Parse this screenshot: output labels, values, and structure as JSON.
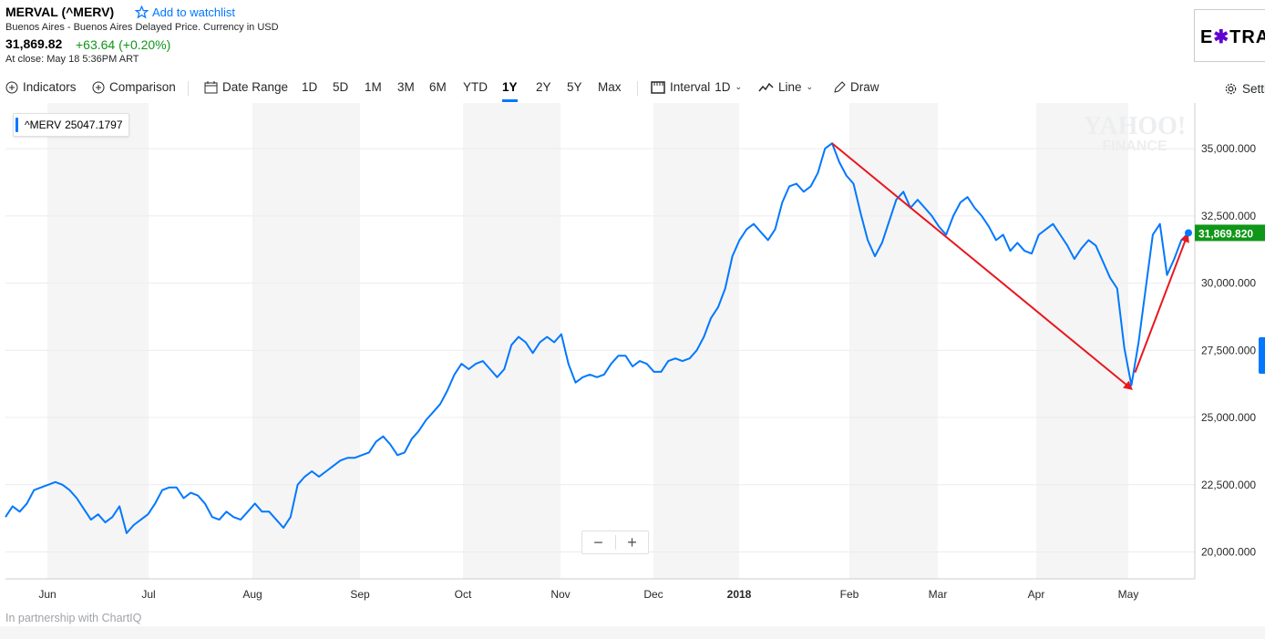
{
  "header": {
    "title": "MERVAL (^MERV)",
    "watchlist_label": "Add to watchlist",
    "subtitle": "Buenos Aires - Buenos Aires Delayed Price. Currency in USD",
    "price": "31,869.82",
    "change": "+63.64 (+0.20%)",
    "close_time": "At close: May 18 5:36PM ART"
  },
  "ad": {
    "text_pre": "E",
    "text_mid": "✱",
    "text_post": "TRA"
  },
  "toolbar": {
    "indicators": "Indicators",
    "comparison": "Comparison",
    "date_range": "Date Range",
    "ranges": [
      "1D",
      "5D",
      "1M",
      "3M",
      "6M",
      "YTD",
      "1Y",
      "2Y",
      "5Y",
      "Max"
    ],
    "active_range": "1Y",
    "interval": "Interval",
    "interval_value": "1D",
    "line": "Line",
    "draw": "Draw",
    "settings": "Settings"
  },
  "legend": {
    "symbol": "^MERV",
    "value": "25047.1797"
  },
  "footer": {
    "partner": "In partnership with ChartIQ"
  },
  "watermark": {
    "line1": "YAHOO!",
    "line2": "FINANCE"
  },
  "colors": {
    "line": "#0078ff",
    "up": "#109618",
    "annotation": "#e8171f",
    "band": "#f5f5f5"
  },
  "chart_data": {
    "type": "line",
    "title": "MERVAL (^MERV)",
    "ylim": [
      19000,
      36700
    ],
    "yticks": [
      20000,
      22500,
      25000,
      27500,
      30000,
      32500,
      35000
    ],
    "ytick_labels": [
      "20,000.000",
      "22,500.000",
      "25,000.000",
      "27,500.000",
      "30,000.000",
      "32,500.000",
      "35,000.000"
    ],
    "xticks": [
      "Jun",
      "Jul",
      "Aug",
      "Sep",
      "Oct",
      "Nov",
      "Dec",
      "2018",
      "Feb",
      "Mar",
      "Apr",
      "May"
    ],
    "current_label": "31,869.820",
    "series": [
      {
        "name": "^MERV",
        "values": [
          21300,
          21700,
          21500,
          21800,
          22300,
          22400,
          22500,
          22600,
          22500,
          22300,
          22000,
          21600,
          21200,
          21400,
          21100,
          21300,
          21700,
          20700,
          21000,
          21200,
          21400,
          21800,
          22300,
          22400,
          22400,
          22000,
          22200,
          22100,
          21800,
          21300,
          21200,
          21500,
          21300,
          21200,
          21500,
          21800,
          21500,
          21500,
          21200,
          20900,
          21300,
          22500,
          22800,
          23000,
          22800,
          23000,
          23200,
          23400,
          23500,
          23500,
          23600,
          23700,
          24100,
          24300,
          24000,
          23600,
          23700,
          24200,
          24500,
          24900,
          25200,
          25500,
          26000,
          26600,
          27000,
          26800,
          27000,
          27100,
          26800,
          26500,
          26800,
          27700,
          28000,
          27800,
          27400,
          27800,
          28000,
          27800,
          28100,
          27000,
          26300,
          26500,
          26600,
          26500,
          26600,
          27000,
          27300,
          27300,
          26900,
          27100,
          27000,
          26700,
          26700,
          27100,
          27200,
          27100,
          27200,
          27500,
          28000,
          28700,
          29100,
          29800,
          31000,
          31600,
          32000,
          32200,
          31900,
          31600,
          32000,
          33000,
          33600,
          33700,
          33400,
          33600,
          34100,
          35000,
          35200,
          34500,
          34000,
          33700,
          32600,
          31600,
          31000,
          31500,
          32300,
          33100,
          33400,
          32800,
          33100,
          32800,
          32500,
          32100,
          31800,
          32500,
          33000,
          33200,
          32800,
          32500,
          32100,
          31600,
          31800,
          31200,
          31500,
          31200,
          31100,
          31800,
          32000,
          32200,
          31800,
          31400,
          30900,
          31300,
          31600,
          31400,
          30800,
          30200,
          29800,
          27600,
          26200,
          27800,
          29800,
          31800,
          32200,
          30300,
          30900,
          31600,
          31869.82
        ]
      }
    ]
  }
}
